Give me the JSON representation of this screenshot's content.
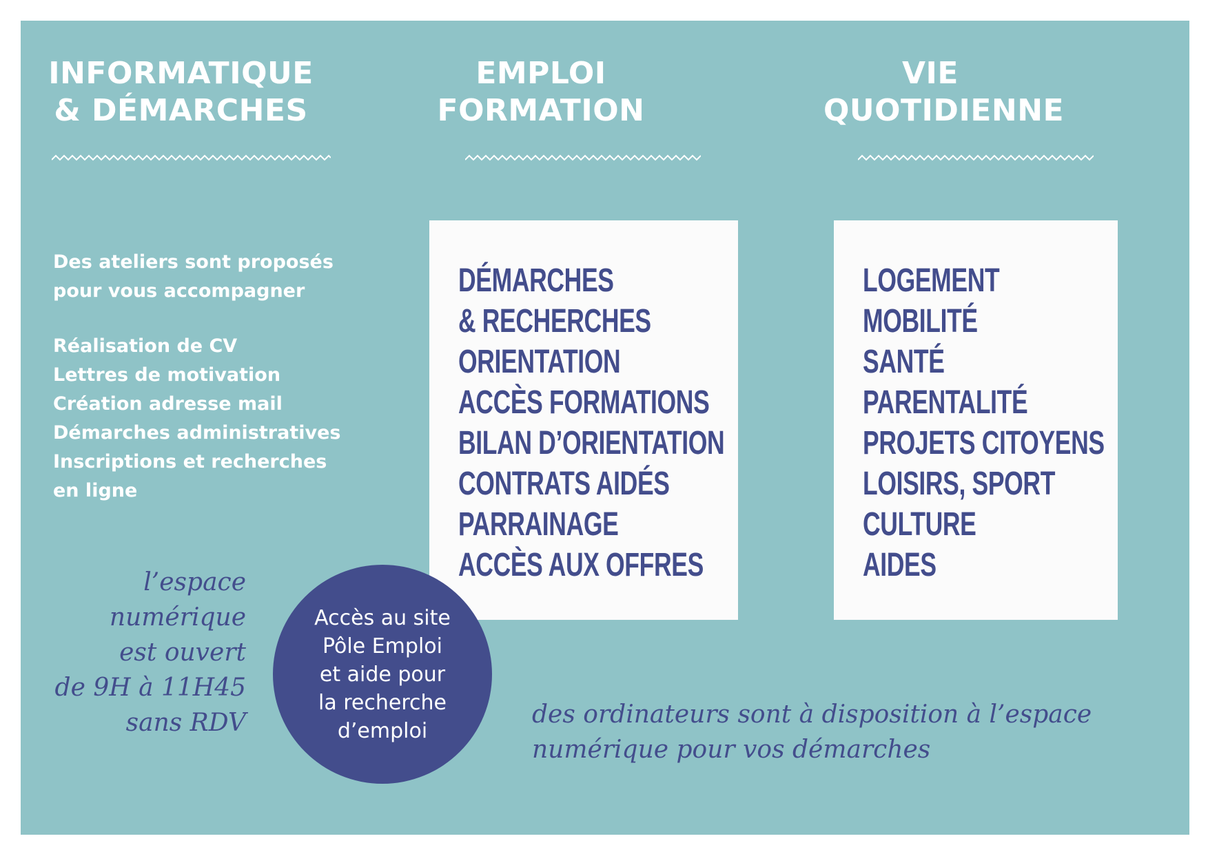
{
  "colors": {
    "panel": "#8fc3c7",
    "navy": "#434d8c",
    "white": "#ffffff",
    "box": "#fbfbfb"
  },
  "columns": [
    {
      "title_lines": [
        "INFORMATIQUE",
        "& DÉMARCHES"
      ]
    },
    {
      "title_lines": [
        "EMPLOI",
        "FORMATION"
      ]
    },
    {
      "title_lines": [
        "VIE",
        "QUOTIDIENNE"
      ]
    }
  ],
  "intro": {
    "lines": [
      "Des ateliers sont proposés",
      "pour vous accompagner"
    ],
    "items": [
      "Réalisation de CV",
      "Lettres de motivation",
      "Création adresse mail",
      "Démarches administratives",
      "Inscriptions et recherches",
      "en ligne"
    ]
  },
  "emploi_items": [
    "DÉMARCHES",
    "& RECHERCHES",
    "ORIENTATION",
    "ACCÈS FORMATIONS",
    "BILAN D’ORIENTATION",
    "CONTRATS AIDÉS",
    "PARRAINAGE",
    "ACCÈS AUX OFFRES"
  ],
  "vie_items": [
    "LOGEMENT",
    "MOBILITÉ",
    "SANTÉ",
    "PARENTALITÉ",
    "PROJETS CITOYENS",
    "LOISIRS, SPORT",
    "CULTURE",
    "AIDES"
  ],
  "hours_lines": [
    "l’espace",
    "numérique",
    "est ouvert",
    "de 9H à 11H45",
    "sans RDV"
  ],
  "circle_lines": [
    "Accès au site",
    "Pôle Emploi",
    "et aide pour",
    "la recherche",
    "d’emploi"
  ],
  "footer_lines": [
    "des ordinateurs sont à disposition à l’espace",
    "numérique pour vos démarches"
  ]
}
